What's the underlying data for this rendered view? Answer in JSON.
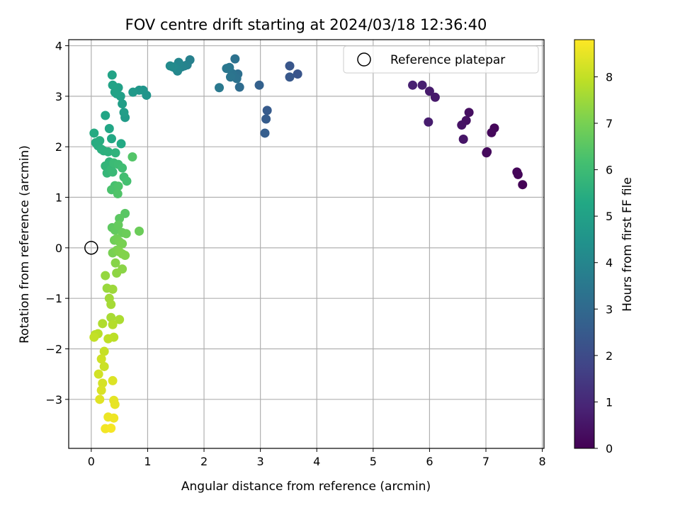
{
  "chart_data": {
    "type": "scatter",
    "title": "FOV centre drift starting at 2024/03/18 12:36:40",
    "xlabel": "Angular distance from reference (arcmin)",
    "ylabel": "Rotation from reference (arcmin)",
    "xlim": [
      -0.4,
      8.03
    ],
    "ylim": [
      -3.97,
      4.12
    ],
    "xticks": [
      "0",
      "1",
      "2",
      "3",
      "4",
      "5",
      "6",
      "7",
      "8"
    ],
    "yticks": [
      "−3",
      "−2",
      "−1",
      "0",
      "1",
      "2",
      "3",
      "4"
    ],
    "grid": true,
    "legend": {
      "position": "upper-right",
      "entries": [
        "Reference platepar"
      ]
    },
    "reference_point": {
      "x": 0,
      "y": 0
    },
    "colorbar": {
      "label": "Hours from first FF file",
      "colormap": "viridis",
      "range": [
        0,
        8.8
      ],
      "ticks": [
        "0",
        "1",
        "2",
        "3",
        "4",
        "5",
        "6",
        "7",
        "8"
      ]
    },
    "points": [
      [
        7.65,
        1.25,
        0.05
      ],
      [
        7.57,
        1.45,
        0.1
      ],
      [
        7.55,
        1.5,
        0.12
      ],
      [
        7.15,
        2.37,
        0.15
      ],
      [
        7.1,
        2.28,
        0.18
      ],
      [
        7.02,
        1.9,
        0.2
      ],
      [
        7.01,
        1.88,
        0.22
      ],
      [
        6.7,
        2.68,
        0.35
      ],
      [
        6.65,
        2.52,
        0.4
      ],
      [
        6.57,
        2.43,
        0.45
      ],
      [
        6.6,
        2.15,
        0.5
      ],
      [
        6.1,
        2.98,
        0.6
      ],
      [
        6.0,
        3.1,
        0.65
      ],
      [
        5.98,
        2.49,
        0.7
      ],
      [
        5.87,
        3.22,
        0.75
      ],
      [
        5.7,
        3.22,
        0.8
      ],
      [
        3.66,
        3.44,
        2.3
      ],
      [
        3.52,
        3.6,
        2.35
      ],
      [
        3.52,
        3.38,
        2.4
      ],
      [
        3.12,
        2.72,
        2.5
      ],
      [
        3.1,
        2.55,
        2.55
      ],
      [
        3.08,
        2.27,
        2.6
      ],
      [
        2.98,
        3.22,
        2.7
      ],
      [
        2.63,
        3.18,
        3.1
      ],
      [
        2.6,
        3.44,
        3.2
      ],
      [
        2.55,
        3.74,
        3.3
      ],
      [
        2.58,
        3.35,
        3.3
      ],
      [
        2.5,
        3.45,
        3.35
      ],
      [
        2.47,
        3.38,
        3.4
      ],
      [
        2.45,
        3.57,
        3.45
      ],
      [
        2.4,
        3.55,
        3.5
      ],
      [
        2.27,
        3.17,
        3.55
      ],
      [
        1.75,
        3.72,
        3.8
      ],
      [
        1.7,
        3.62,
        3.85
      ],
      [
        1.65,
        3.6,
        3.9
      ],
      [
        1.6,
        3.58,
        3.95
      ],
      [
        1.55,
        3.67,
        4.0
      ],
      [
        1.53,
        3.5,
        4.05
      ],
      [
        1.5,
        3.55,
        4.1
      ],
      [
        1.45,
        3.58,
        4.15
      ],
      [
        1.4,
        3.6,
        4.2
      ],
      [
        0.98,
        3.02,
        4.5
      ],
      [
        0.92,
        3.12,
        4.55
      ],
      [
        0.85,
        3.12,
        4.6
      ],
      [
        0.74,
        3.08,
        4.7
      ],
      [
        0.6,
        2.58,
        4.8
      ],
      [
        0.58,
        2.68,
        4.85
      ],
      [
        0.55,
        2.85,
        4.9
      ],
      [
        0.52,
        3.0,
        4.95
      ],
      [
        0.48,
        3.17,
        5.0
      ],
      [
        0.45,
        3.05,
        5.0
      ],
      [
        0.42,
        3.08,
        5.05
      ],
      [
        0.38,
        3.22,
        5.1
      ],
      [
        0.37,
        3.42,
        5.1
      ],
      [
        0.25,
        2.62,
        5.15
      ],
      [
        0.32,
        2.36,
        5.2
      ],
      [
        0.36,
        2.16,
        5.25
      ],
      [
        0.53,
        2.06,
        5.3
      ],
      [
        0.05,
        2.27,
        5.35
      ],
      [
        0.08,
        2.08,
        5.4
      ],
      [
        0.12,
        2.02,
        5.45
      ],
      [
        0.15,
        2.12,
        5.45
      ],
      [
        0.18,
        1.95,
        5.5
      ],
      [
        0.22,
        1.92,
        5.55
      ],
      [
        0.3,
        1.9,
        5.6
      ],
      [
        0.43,
        1.88,
        5.65
      ],
      [
        0.32,
        1.7,
        5.7
      ],
      [
        0.25,
        1.62,
        5.75
      ],
      [
        0.28,
        1.48,
        5.8
      ],
      [
        0.35,
        1.55,
        5.85
      ],
      [
        0.38,
        1.5,
        5.9
      ],
      [
        0.4,
        1.68,
        5.95
      ],
      [
        0.48,
        1.65,
        6.0
      ],
      [
        0.55,
        1.58,
        6.05
      ],
      [
        0.58,
        1.4,
        6.1
      ],
      [
        0.63,
        1.32,
        6.15
      ],
      [
        0.42,
        1.23,
        6.2
      ],
      [
        0.36,
        1.15,
        6.25
      ],
      [
        0.48,
        1.22,
        6.3
      ],
      [
        0.47,
        1.07,
        6.35
      ],
      [
        0.73,
        1.8,
        6.4
      ],
      [
        0.6,
        0.68,
        6.5
      ],
      [
        0.5,
        0.58,
        6.55
      ],
      [
        0.37,
        0.4,
        6.6
      ],
      [
        0.42,
        0.35,
        6.65
      ],
      [
        0.48,
        0.45,
        6.7
      ],
      [
        0.55,
        0.3,
        6.75
      ],
      [
        0.62,
        0.28,
        6.8
      ],
      [
        0.85,
        0.33,
        6.8
      ],
      [
        0.41,
        0.15,
        6.85
      ],
      [
        0.45,
        0.18,
        6.9
      ],
      [
        0.5,
        0.12,
        6.95
      ],
      [
        0.55,
        0.08,
        7.0
      ],
      [
        0.38,
        -0.1,
        7.0
      ],
      [
        0.45,
        -0.05,
        7.05
      ],
      [
        0.5,
        -0.08,
        7.1
      ],
      [
        0.55,
        -0.12,
        7.15
      ],
      [
        0.6,
        -0.15,
        7.15
      ],
      [
        0.43,
        -0.3,
        7.2
      ],
      [
        0.55,
        -0.42,
        7.25
      ],
      [
        0.45,
        -0.5,
        7.3
      ],
      [
        0.25,
        -0.55,
        7.4
      ],
      [
        0.28,
        -0.8,
        7.45
      ],
      [
        0.38,
        -0.82,
        7.5
      ],
      [
        0.32,
        -1.0,
        7.55
      ],
      [
        0.35,
        -1.12,
        7.6
      ],
      [
        0.35,
        -1.38,
        7.65
      ],
      [
        0.5,
        -1.42,
        7.7
      ],
      [
        0.2,
        -1.5,
        7.75
      ],
      [
        0.38,
        -1.52,
        7.8
      ],
      [
        0.12,
        -1.7,
        7.85
      ],
      [
        0.07,
        -1.72,
        7.9
      ],
      [
        0.4,
        -1.77,
        7.9
      ],
      [
        0.3,
        -1.8,
        7.95
      ],
      [
        0.05,
        -1.77,
        8.0
      ],
      [
        0.23,
        -2.05,
        8.05
      ],
      [
        0.23,
        -2.35,
        8.1
      ],
      [
        0.18,
        -2.2,
        8.15
      ],
      [
        0.13,
        -2.5,
        8.2
      ],
      [
        0.2,
        -2.68,
        8.25
      ],
      [
        0.18,
        -2.82,
        8.3
      ],
      [
        0.38,
        -2.63,
        8.35
      ],
      [
        0.15,
        -3.0,
        8.4
      ],
      [
        0.4,
        -3.02,
        8.45
      ],
      [
        0.42,
        -3.1,
        8.5
      ],
      [
        0.3,
        -3.35,
        8.55
      ],
      [
        0.4,
        -3.37,
        8.6
      ],
      [
        0.25,
        -3.58,
        8.65
      ],
      [
        0.35,
        -3.57,
        8.7
      ]
    ]
  }
}
